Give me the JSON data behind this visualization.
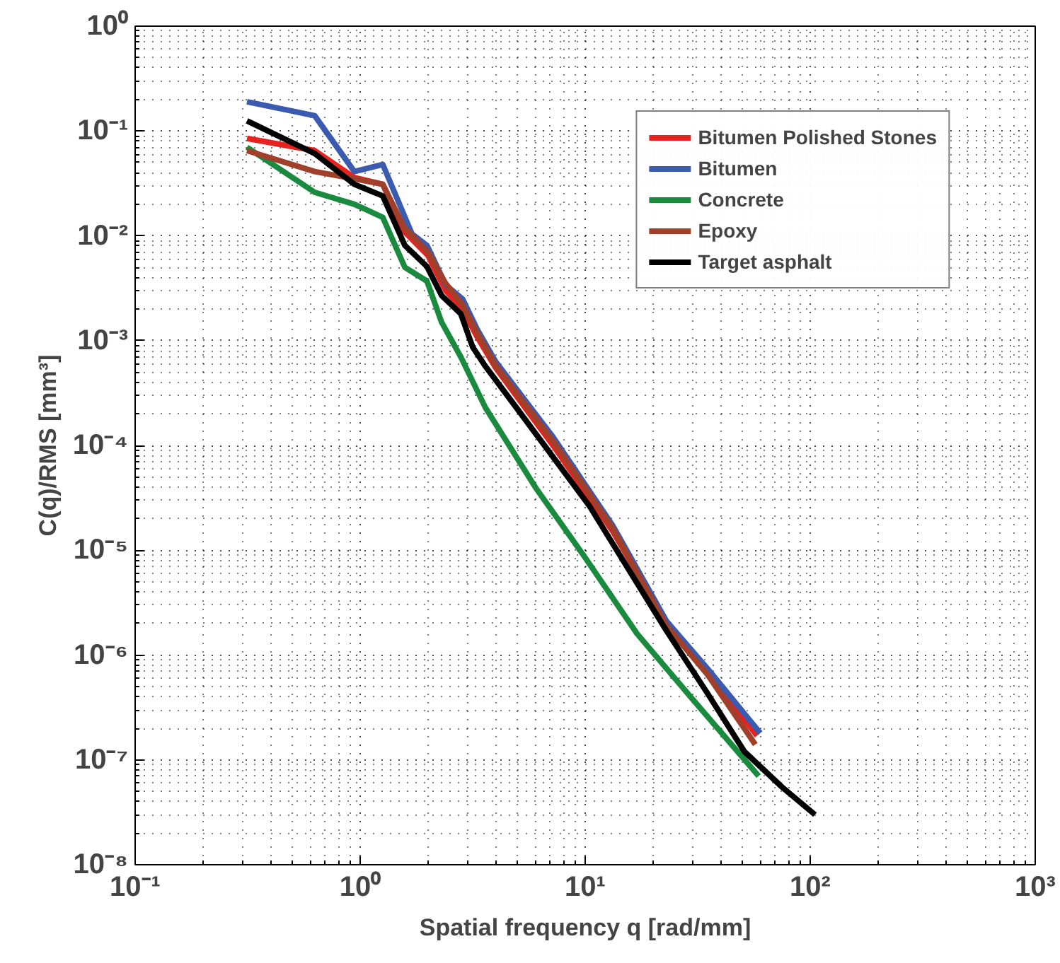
{
  "chart_data": {
    "type": "line",
    "xlabel": "Spatial frequency q [rad/mm]",
    "ylabel": "C(q)/RMS [mm³]",
    "log": "xy",
    "grid": true,
    "legend": "top right",
    "line_style": "solid",
    "marker": "none",
    "xlim": [
      0.1,
      1000
    ],
    "ylim": [
      1e-08,
      1
    ],
    "xticks": [
      {
        "value": 0.1,
        "label": "10⁻¹"
      },
      {
        "value": 1,
        "label": "10⁰"
      },
      {
        "value": 10,
        "label": "10¹"
      },
      {
        "value": 100,
        "label": "10²"
      },
      {
        "value": 1000,
        "label": "10³"
      }
    ],
    "yticks": [
      {
        "value": 1e-08,
        "label": "10⁻⁸"
      },
      {
        "value": 1e-07,
        "label": "10⁻⁷"
      },
      {
        "value": 1e-06,
        "label": "10⁻⁶"
      },
      {
        "value": 1e-05,
        "label": "10⁻⁵"
      },
      {
        "value": 0.0001,
        "label": "10⁻⁴"
      },
      {
        "value": 0.001,
        "label": "10⁻³"
      },
      {
        "value": 0.01,
        "label": "10⁻²"
      },
      {
        "value": 0.1,
        "label": "10⁻¹"
      },
      {
        "value": 1,
        "label": "10⁰"
      }
    ],
    "series": [
      {
        "name": "Bitumen Polished Stones",
        "color": "#e8221f",
        "x": [
          0.314,
          0.628,
          0.942,
          1.26,
          1.57,
          2.0,
          2.4,
          2.85,
          3.3,
          4.0,
          7.2,
          13.3,
          23,
          35,
          58
        ],
        "values": [
          0.085,
          0.065,
          0.036,
          0.031,
          0.011,
          0.0065,
          0.003,
          0.002,
          0.0011,
          0.00055,
          0.0001,
          1.5e-05,
          2e-06,
          7e-07,
          1.7e-07
        ]
      },
      {
        "name": "Bitumen",
        "color": "#3a5bb0",
        "x": [
          0.314,
          0.628,
          0.942,
          1.26,
          1.7,
          1.98,
          2.4,
          2.85,
          3.3,
          4.0,
          7.2,
          13.3,
          23,
          35,
          60
        ],
        "values": [
          0.19,
          0.14,
          0.041,
          0.048,
          0.0104,
          0.0081,
          0.0034,
          0.0025,
          0.0013,
          0.00063,
          0.00012,
          1.7e-05,
          2.1e-06,
          7.4e-07,
          1.8e-07
        ]
      },
      {
        "name": "Concrete",
        "color": "#1a8a3e",
        "x": [
          0.314,
          0.628,
          0.942,
          1.26,
          1.58,
          1.98,
          2.3,
          2.8,
          3.6,
          6,
          10,
          17,
          30,
          59
        ],
        "values": [
          0.07,
          0.026,
          0.02,
          0.015,
          0.005,
          0.0037,
          0.0015,
          0.0007,
          0.00023,
          4e-05,
          8.5e-06,
          1.6e-06,
          3.8e-07,
          7e-08
        ]
      },
      {
        "name": "Epoxy",
        "color": "#a0402a",
        "x": [
          0.314,
          0.628,
          0.942,
          1.26,
          1.57,
          2.0,
          2.4,
          2.85,
          3.3,
          4.0,
          7.2,
          13.3,
          23,
          35,
          57
        ],
        "values": [
          0.065,
          0.041,
          0.035,
          0.031,
          0.012,
          0.007,
          0.0035,
          0.0022,
          0.0012,
          0.00058,
          0.00011,
          1.6e-05,
          1.9e-06,
          6.5e-07,
          1.4e-07
        ]
      },
      {
        "name": "Target asphalt",
        "color": "#000000",
        "x": [
          0.314,
          0.628,
          0.942,
          1.26,
          1.58,
          1.98,
          2.3,
          2.8,
          3.16,
          3.6,
          5.1,
          10.5,
          23,
          35,
          51,
          75,
          105
        ],
        "values": [
          0.125,
          0.061,
          0.031,
          0.024,
          0.0081,
          0.0051,
          0.0027,
          0.0018,
          0.00087,
          0.00057,
          0.00021,
          2.6e-05,
          1.7e-06,
          4.3e-07,
          1.2e-07,
          5.5e-08,
          3e-08
        ]
      }
    ]
  }
}
